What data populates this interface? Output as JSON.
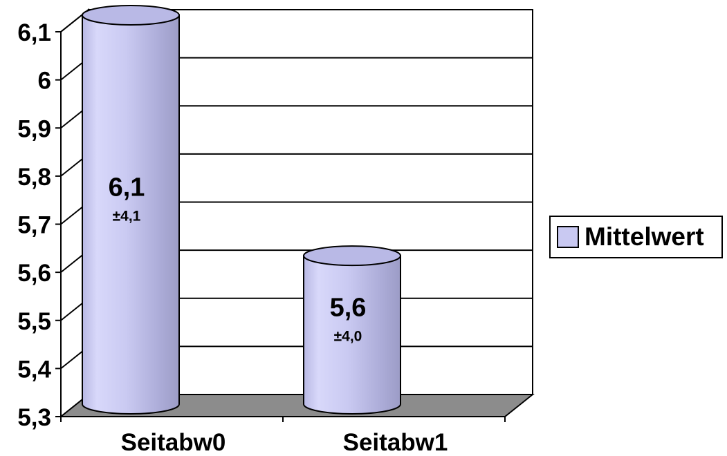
{
  "chart_data": {
    "type": "bar",
    "categories": [
      "Seitabw0",
      "Seitabw1"
    ],
    "series": [
      {
        "name": "Mittelwert",
        "values": [
          6.1,
          5.6
        ],
        "labels": [
          "6,1",
          "5,6"
        ],
        "sd_labels": [
          "±4,1",
          "±4,0"
        ],
        "color": "#c9c9f2"
      }
    ],
    "y_ticks": [
      "5,3",
      "5,4",
      "5,5",
      "5,6",
      "5,7",
      "5,8",
      "5,9",
      "6",
      "6,1"
    ],
    "ylim": [
      5.3,
      6.1
    ],
    "title": "",
    "xlabel": "",
    "ylabel": "",
    "grid": true,
    "legend_position": "right",
    "style": "3d-cylinder"
  },
  "colors": {
    "bar_fill": "#c9c9f2",
    "floor": "#8c8c8c",
    "grid": "#000000"
  }
}
